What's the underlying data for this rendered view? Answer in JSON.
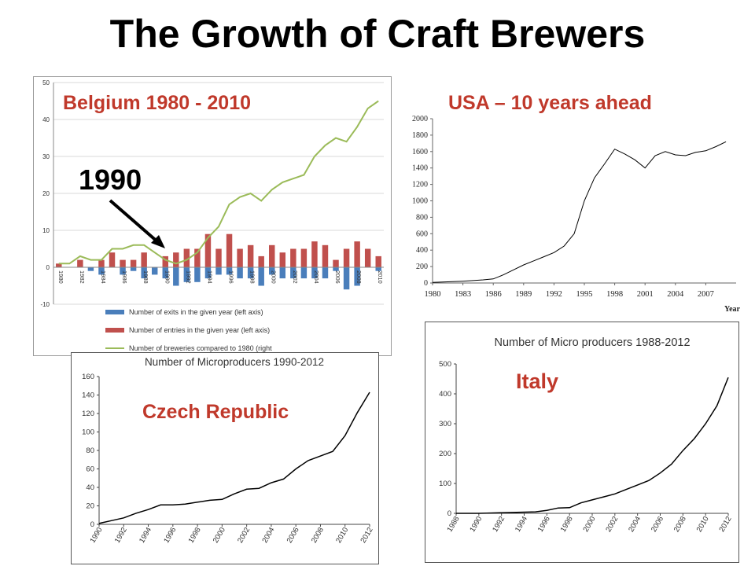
{
  "title": "The Growth of Craft Brewers",
  "labels": {
    "belgium": "Belgium 1980 - 2010",
    "usa": "USA – 10 years ahead",
    "czech": "Czech Republic",
    "italy": "Italy",
    "arrow_year": "1990"
  },
  "colors": {
    "exits": "#4a7ebb",
    "entries": "#c0504d",
    "breweries": "#9bbb59",
    "label_red": "#c0392b",
    "line": "#000000"
  },
  "chart_data": [
    {
      "type": "bar",
      "id": "belgium",
      "x": [
        1980,
        1981,
        1982,
        1983,
        1984,
        1985,
        1986,
        1987,
        1988,
        1989,
        1990,
        1991,
        1992,
        1993,
        1994,
        1995,
        1996,
        1997,
        1998,
        1999,
        2000,
        2001,
        2002,
        2003,
        2004,
        2005,
        2006,
        2007,
        2008,
        2009,
        2010
      ],
      "x_tick_labels": [
        "1980",
        "1982",
        "1984",
        "1986",
        "1988",
        "1990",
        "1992",
        "1994",
        "1996",
        "1998",
        "2000",
        "2002",
        "2004",
        "2006",
        "2008",
        "2010"
      ],
      "ylim": [
        -10,
        50
      ],
      "y_ticks": [
        -10,
        0,
        10,
        20,
        30,
        40,
        50
      ],
      "series": [
        {
          "name": "Number of exits in the given year (left axis)",
          "type": "bar",
          "values": [
            0,
            0,
            0,
            -1,
            -2,
            0,
            -2,
            -1,
            -3,
            -2,
            -3,
            -5,
            -4,
            -4,
            -3,
            -2,
            -2,
            -3,
            -3,
            -5,
            -2,
            -3,
            -3,
            -3,
            -3,
            -3,
            -1,
            -6,
            -5,
            0,
            -1
          ]
        },
        {
          "name": "Number of entries in the given year (left axis)",
          "type": "bar",
          "values": [
            1,
            0,
            2,
            0,
            2,
            4,
            2,
            2,
            4,
            0,
            3,
            4,
            5,
            5,
            9,
            5,
            9,
            5,
            6,
            3,
            6,
            4,
            5,
            5,
            7,
            6,
            2,
            5,
            7,
            5,
            3
          ]
        },
        {
          "name": "Number of breweries compared to 1980 (right",
          "type": "line",
          "values": [
            1,
            1,
            3,
            2,
            2,
            5,
            5,
            6,
            6,
            4,
            2,
            1,
            2,
            4,
            8,
            11,
            17,
            19,
            20,
            18,
            21,
            23,
            24,
            25,
            30,
            33,
            35,
            34,
            38,
            43,
            45
          ]
        }
      ]
    },
    {
      "type": "line",
      "id": "usa",
      "x": [
        1980,
        1981,
        1982,
        1983,
        1984,
        1985,
        1986,
        1987,
        1988,
        1989,
        1990,
        1991,
        1992,
        1993,
        1994,
        1995,
        1996,
        1997,
        1998,
        1999,
        2000,
        2001,
        2002,
        2003,
        2004,
        2005,
        2006,
        2007,
        2008,
        2009
      ],
      "values": [
        8,
        12,
        16,
        22,
        30,
        38,
        50,
        100,
        160,
        220,
        270,
        320,
        370,
        450,
        600,
        1000,
        1280,
        1450,
        1630,
        1570,
        1500,
        1400,
        1550,
        1600,
        1560,
        1550,
        1590,
        1610,
        1660,
        1720
      ],
      "x_tick_labels": [
        "1980",
        "1983",
        "1986",
        "1989",
        "1992",
        "1995",
        "1998",
        "2001",
        "2004",
        "2007"
      ],
      "xlabel": "Year",
      "ylim": [
        0,
        2000
      ],
      "y_ticks": [
        0,
        200,
        400,
        600,
        800,
        1000,
        1200,
        1400,
        1600,
        1800,
        2000
      ]
    },
    {
      "type": "line",
      "id": "czech",
      "title": "Number of Microproducers 1990-2012",
      "x": [
        1990,
        1991,
        1992,
        1993,
        1994,
        1995,
        1996,
        1997,
        1998,
        1999,
        2000,
        2001,
        2002,
        2003,
        2004,
        2005,
        2006,
        2007,
        2008,
        2009,
        2010,
        2011,
        2012
      ],
      "values": [
        1,
        4,
        7,
        12,
        16,
        21,
        21,
        22,
        24,
        26,
        27,
        33,
        38,
        39,
        45,
        49,
        60,
        69,
        74,
        79,
        96,
        121,
        143
      ],
      "x_tick_labels": [
        "1990",
        "1992",
        "1994",
        "1996",
        "1998",
        "2000",
        "2002",
        "2004",
        "2006",
        "2008",
        "2010",
        "2012"
      ],
      "ylim": [
        0,
        160
      ],
      "y_ticks": [
        0,
        20,
        40,
        60,
        80,
        100,
        120,
        140,
        160
      ]
    },
    {
      "type": "line",
      "id": "italy",
      "title": "Number of Micro producers 1988-2012",
      "x": [
        1988,
        1989,
        1990,
        1991,
        1992,
        1993,
        1994,
        1995,
        1996,
        1997,
        1998,
        1999,
        2000,
        2001,
        2002,
        2003,
        2004,
        2005,
        2006,
        2007,
        2008,
        2009,
        2010,
        2011,
        2012
      ],
      "values": [
        0,
        0,
        0,
        1,
        2,
        3,
        4,
        5,
        10,
        18,
        19,
        35,
        45,
        55,
        65,
        80,
        95,
        110,
        135,
        165,
        210,
        250,
        300,
        360,
        455
      ],
      "x_tick_labels": [
        "1988",
        "1990",
        "1992",
        "1994",
        "1996",
        "1998",
        "2000",
        "2002",
        "2004",
        "2006",
        "2008",
        "2010",
        "2012"
      ],
      "ylim": [
        0,
        500
      ],
      "y_ticks": [
        0,
        100,
        200,
        300,
        400,
        500
      ]
    }
  ]
}
